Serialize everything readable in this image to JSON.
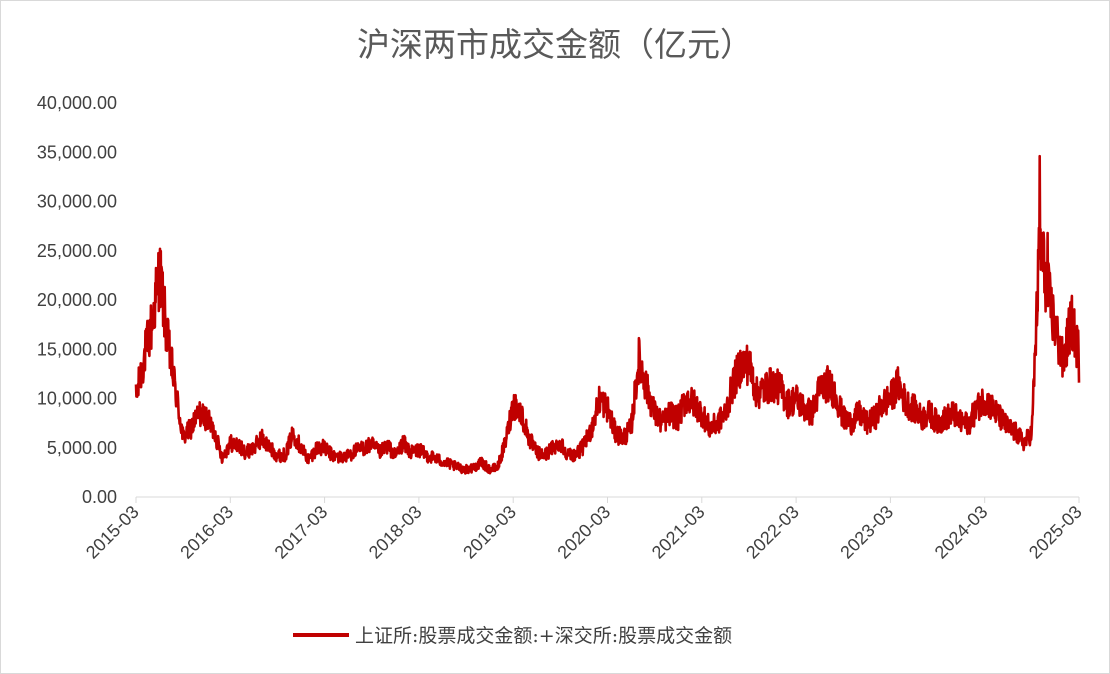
{
  "chart_data": {
    "type": "line",
    "title": "沪深两市成交金额（亿元）",
    "xlabel": "",
    "ylabel": "",
    "ylim": [
      0,
      40000
    ],
    "y_ticks": [
      "0.00",
      "5,000.00",
      "10,000.00",
      "15,000.00",
      "20,000.00",
      "25,000.00",
      "30,000.00",
      "35,000.00",
      "40,000.00"
    ],
    "x_ticks": [
      "2015-03",
      "2016-03",
      "2017-03",
      "2018-03",
      "2019-03",
      "2020-03",
      "2021-03",
      "2022-03",
      "2023-03",
      "2024-03",
      "2025-03"
    ],
    "x_range": [
      "2015-03",
      "2025-03"
    ],
    "grid": false,
    "legend_position": "bottom",
    "series": [
      {
        "name": "上证所:股票成交金额:+深交所:股票成交金额",
        "color": "#c00000",
        "points": [
          [
            "2015-03",
            10000
          ],
          [
            "2015-04",
            14000
          ],
          [
            "2015-05",
            17500
          ],
          [
            "2015-06",
            23000
          ],
          [
            "2015-07",
            16000
          ],
          [
            "2015-08",
            11000
          ],
          [
            "2015-09",
            6000
          ],
          [
            "2015-10",
            7000
          ],
          [
            "2015-11",
            8500
          ],
          [
            "2015-12",
            8000
          ],
          [
            "2016-01",
            6500
          ],
          [
            "2016-02",
            4000
          ],
          [
            "2016-03",
            5500
          ],
          [
            "2016-04",
            5200
          ],
          [
            "2016-05",
            4500
          ],
          [
            "2016-06",
            5000
          ],
          [
            "2016-07",
            6000
          ],
          [
            "2016-08",
            5000
          ],
          [
            "2016-09",
            4200
          ],
          [
            "2016-10",
            4300
          ],
          [
            "2016-11",
            6500
          ],
          [
            "2016-12",
            5000
          ],
          [
            "2017-01",
            3800
          ],
          [
            "2017-02",
            5000
          ],
          [
            "2017-03",
            5000
          ],
          [
            "2017-04",
            4200
          ],
          [
            "2017-05",
            4000
          ],
          [
            "2017-06",
            4200
          ],
          [
            "2017-07",
            4700
          ],
          [
            "2017-08",
            5000
          ],
          [
            "2017-09",
            5300
          ],
          [
            "2017-10",
            4500
          ],
          [
            "2017-11",
            5200
          ],
          [
            "2017-12",
            4200
          ],
          [
            "2018-01",
            5500
          ],
          [
            "2018-02",
            4500
          ],
          [
            "2018-03",
            4800
          ],
          [
            "2018-04",
            4200
          ],
          [
            "2018-05",
            4000
          ],
          [
            "2018-06",
            3600
          ],
          [
            "2018-07",
            3300
          ],
          [
            "2018-08",
            3000
          ],
          [
            "2018-09",
            2800
          ],
          [
            "2018-10",
            3000
          ],
          [
            "2018-11",
            3500
          ],
          [
            "2018-12",
            2800
          ],
          [
            "2019-01",
            3000
          ],
          [
            "2019-02",
            5500
          ],
          [
            "2019-03",
            9500
          ],
          [
            "2019-04",
            8500
          ],
          [
            "2019-05",
            6000
          ],
          [
            "2019-06",
            4500
          ],
          [
            "2019-07",
            4200
          ],
          [
            "2019-08",
            5000
          ],
          [
            "2019-09",
            5500
          ],
          [
            "2019-10",
            4300
          ],
          [
            "2019-11",
            4300
          ],
          [
            "2019-12",
            5200
          ],
          [
            "2020-01",
            7000
          ],
          [
            "2020-02",
            10000
          ],
          [
            "2020-03",
            9000
          ],
          [
            "2020-04",
            6500
          ],
          [
            "2020-05",
            6000
          ],
          [
            "2020-06",
            7000
          ],
          [
            "2020-07",
            14000
          ],
          [
            "2020-08",
            11000
          ],
          [
            "2020-09",
            8500
          ],
          [
            "2020-10",
            7500
          ],
          [
            "2020-11",
            8500
          ],
          [
            "2020-12",
            8000
          ],
          [
            "2021-01",
            10000
          ],
          [
            "2021-02",
            9500
          ],
          [
            "2021-03",
            8500
          ],
          [
            "2021-04",
            7000
          ],
          [
            "2021-05",
            7500
          ],
          [
            "2021-06",
            8500
          ],
          [
            "2021-07",
            11500
          ],
          [
            "2021-08",
            13500
          ],
          [
            "2021-09",
            13500
          ],
          [
            "2021-10",
            10500
          ],
          [
            "2021-11",
            11000
          ],
          [
            "2021-12",
            11500
          ],
          [
            "2022-01",
            11000
          ],
          [
            "2022-02",
            9500
          ],
          [
            "2022-03",
            10000
          ],
          [
            "2022-04",
            9000
          ],
          [
            "2022-05",
            8500
          ],
          [
            "2022-06",
            11000
          ],
          [
            "2022-07",
            11500
          ],
          [
            "2022-08",
            10500
          ],
          [
            "2022-09",
            8000
          ],
          [
            "2022-10",
            7500
          ],
          [
            "2022-11",
            8500
          ],
          [
            "2022-12",
            7500
          ],
          [
            "2023-01",
            8000
          ],
          [
            "2023-02",
            9500
          ],
          [
            "2023-03",
            10000
          ],
          [
            "2023-04",
            11500
          ],
          [
            "2023-05",
            9500
          ],
          [
            "2023-06",
            9000
          ],
          [
            "2023-07",
            8000
          ],
          [
            "2023-08",
            8500
          ],
          [
            "2023-09",
            7500
          ],
          [
            "2023-10",
            8000
          ],
          [
            "2023-11",
            8500
          ],
          [
            "2023-12",
            7500
          ],
          [
            "2024-01",
            7500
          ],
          [
            "2024-02",
            9000
          ],
          [
            "2024-03",
            10000
          ],
          [
            "2024-04",
            9000
          ],
          [
            "2024-05",
            8000
          ],
          [
            "2024-06",
            7000
          ],
          [
            "2024-07",
            6500
          ],
          [
            "2024-08",
            5500
          ],
          [
            "2024-09",
            6500
          ],
          [
            "2024-10",
            26000
          ],
          [
            "2024-11",
            21000
          ],
          [
            "2024-12",
            17000
          ],
          [
            "2025-01",
            13500
          ],
          [
            "2025-02",
            18000
          ],
          [
            "2025-03",
            14500
          ]
        ],
        "peaks": [
          [
            "2015-06",
            23700
          ],
          [
            "2024-10",
            34600
          ],
          [
            "2024-11",
            26800
          ]
        ]
      }
    ]
  }
}
